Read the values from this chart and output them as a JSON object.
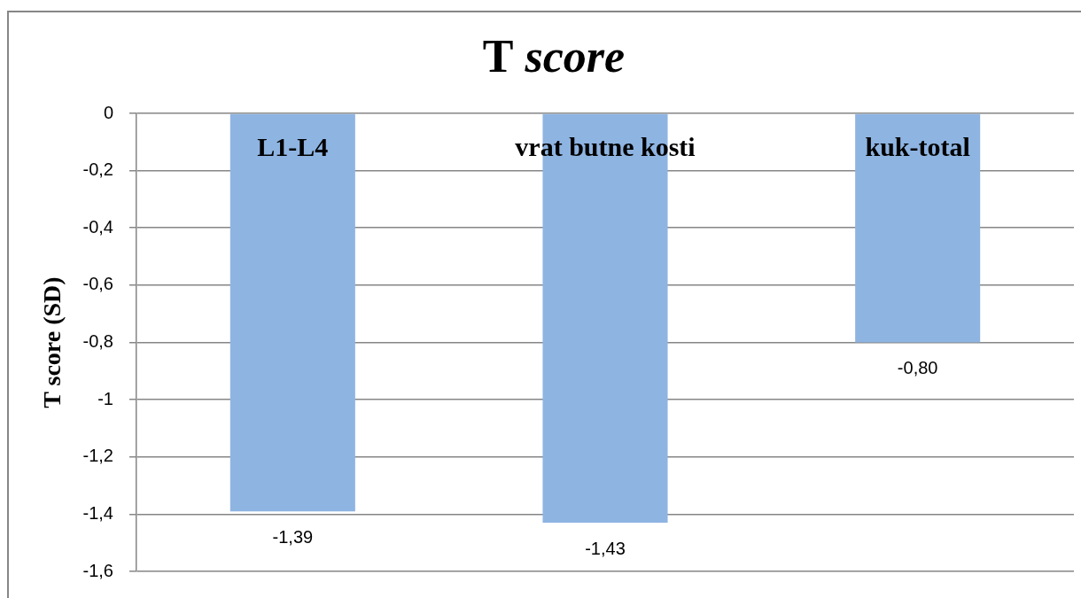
{
  "chart_data": {
    "type": "bar",
    "title": "T score",
    "ylabel": "T score (SD)",
    "categories": [
      "L1-L4",
      "vrat butne kosti",
      "kuk-total"
    ],
    "values": [
      -1.39,
      -1.43,
      -0.8
    ],
    "color": "#8eb4e2",
    "value_labels": [
      "-1,39",
      "-1,43",
      "-0,80"
    ],
    "ylim": [
      -1.6,
      0
    ],
    "yticks": [
      {
        "value": -1.6,
        "label": "-1,6"
      },
      {
        "value": -1.4,
        "label": "-1,4"
      },
      {
        "value": -1.2,
        "label": "-1,2"
      },
      -1,
      {
        "value": -0.8,
        "label": "-0,8"
      },
      {
        "value": -0.6,
        "label": "-0,6"
      },
      {
        "value": -0.4,
        "label": "-0,4"
      },
      {
        "value": -0.2,
        "label": "-0,2"
      },
      0
    ],
    "grid": "y"
  }
}
